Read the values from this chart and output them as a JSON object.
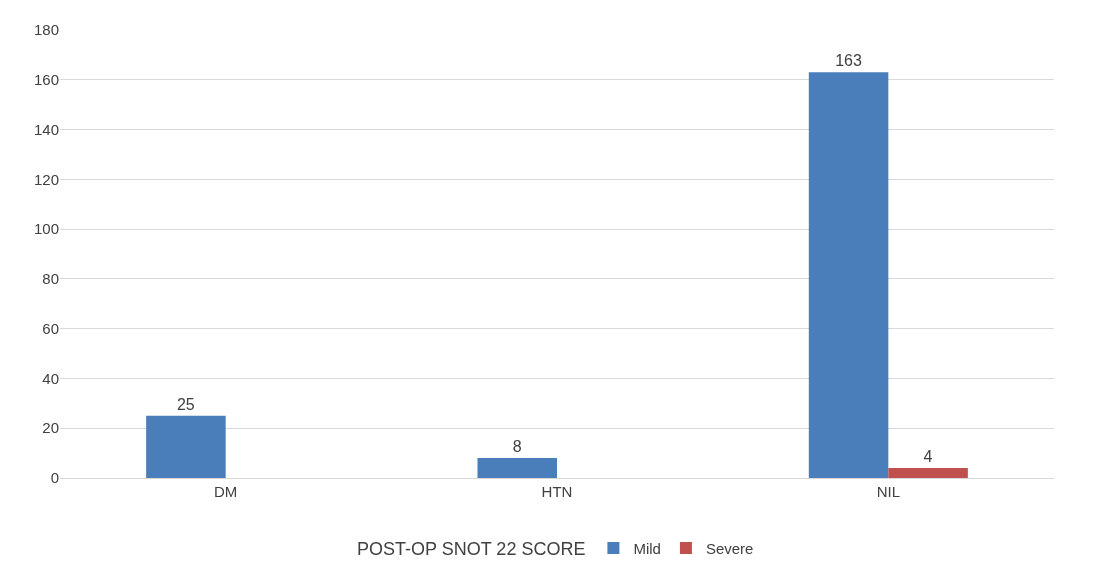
{
  "chart_data": {
    "type": "bar",
    "categories": [
      "DM",
      "HTN",
      "NIL"
    ],
    "series": [
      {
        "name": "Mild",
        "color": "#4a7ebb",
        "values": [
          25,
          8,
          163
        ]
      },
      {
        "name": "Severe",
        "color": "#c0504d",
        "values": [
          null,
          null,
          4
        ]
      }
    ],
    "legend_title": "POST-OP SNOT 22 SCORE",
    "legend": "bottom",
    "data_labels": true,
    "grid": "y",
    "ylim": [
      0,
      180
    ],
    "yticks": [
      0,
      20,
      40,
      60,
      80,
      100,
      120,
      140,
      160,
      180
    ]
  }
}
